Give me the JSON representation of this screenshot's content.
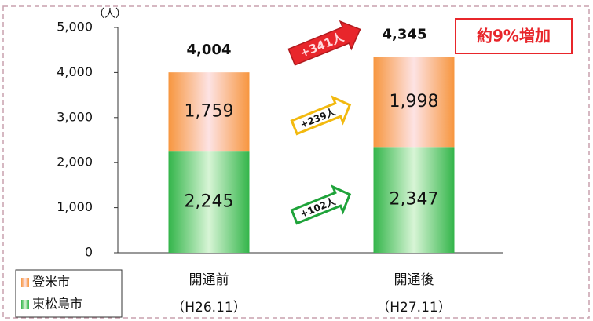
{
  "chart_data": {
    "type": "stacked_bar",
    "unit": "（人）",
    "categories": [
      "開通前",
      "開通後"
    ],
    "category_periods": [
      "（H26.11）",
      "（H27.11）"
    ],
    "series": [
      {
        "name": "東松島市",
        "color": "#33b54a",
        "values": [
          2245,
          2347
        ],
        "value_labels": [
          "2,245",
          "2,347"
        ]
      },
      {
        "name": "登米市",
        "color": "#f7963f",
        "values": [
          1759,
          1998
        ],
        "value_labels": [
          "1,759",
          "1,998"
        ]
      }
    ],
    "totals": [
      4004,
      4345
    ],
    "total_labels": [
      "4,004",
      "4,345"
    ],
    "ylim": [
      0,
      5000
    ],
    "yticks": [
      0,
      {
        "value": 1000,
        "label": "1,000"
      },
      {
        "value": 2000,
        "label": "2,000"
      },
      {
        "value": 3000,
        "label": "3,000"
      },
      {
        "value": 4000,
        "label": "4,000"
      },
      {
        "value": 5000,
        "label": "5,000"
      }
    ],
    "annotations": [
      {
        "text": "+341人",
        "color": "#e8262b"
      },
      {
        "text": "+239人",
        "color": "#f2b90f"
      },
      {
        "text": "+102人",
        "color": "#1fa33a"
      }
    ],
    "callout": {
      "text": "約9%増加",
      "color": "#e8262b"
    },
    "legend": "bottom-left"
  }
}
